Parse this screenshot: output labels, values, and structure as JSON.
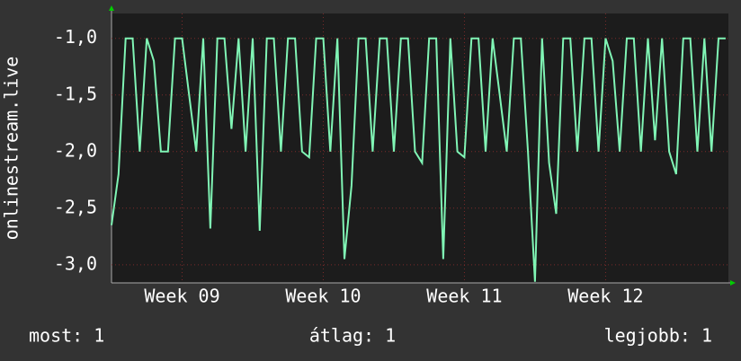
{
  "chart_data": {
    "type": "line",
    "y_label": "onlinestream.live",
    "x": [
      9,
      9.05,
      9.1,
      9.15,
      9.2,
      9.25,
      9.3,
      9.35,
      9.4,
      9.45,
      9.5,
      9.55,
      9.6,
      9.65,
      9.7,
      9.75,
      9.8,
      9.85,
      9.9,
      9.95,
      10,
      10.05,
      10.1,
      10.15,
      10.2,
      10.25,
      10.3,
      10.35,
      10.4,
      10.45,
      10.5,
      10.55,
      10.6,
      10.65,
      10.7,
      10.75,
      10.8,
      10.85,
      10.9,
      10.95,
      11,
      11.05,
      11.1,
      11.15,
      11.2,
      11.25,
      11.3,
      11.35,
      11.4,
      11.45,
      11.5,
      11.55,
      11.6,
      11.65,
      11.7,
      11.75,
      11.8,
      11.85,
      11.9,
      11.95,
      12,
      12.05,
      12.1,
      12.15,
      12.2,
      12.25,
      12.3,
      12.35,
      12.4,
      12.45,
      12.5,
      12.55,
      12.6,
      12.65,
      12.7,
      12.75,
      12.8,
      12.85,
      12.9,
      12.95,
      13,
      13.05,
      13.1,
      13.15,
      13.2,
      13.25,
      13.3,
      13.35
    ],
    "series": [
      {
        "color": "#80f5b5",
        "values": [
          -2.65,
          -2.2,
          -1,
          -1,
          -2,
          -1,
          -1.2,
          -2,
          -2,
          -1,
          -1,
          -1.5,
          -2,
          -1,
          -2.68,
          -1,
          -1,
          -1.8,
          -1,
          -2,
          -1,
          -2.7,
          -1,
          -1,
          -2,
          -1,
          -1,
          -2,
          -2.05,
          -1,
          -1,
          -2,
          -1,
          -2.95,
          -2.3,
          -1,
          -1,
          -2,
          -1,
          -1,
          -2,
          -1,
          -1,
          -2,
          -2.1,
          -1,
          -1,
          -2.95,
          -1,
          -2,
          -2.05,
          -1,
          -1,
          -2,
          -1,
          -1.5,
          -2,
          -1,
          -1,
          -2,
          -3.15,
          -1,
          -2.1,
          -2.55,
          -1,
          -1,
          -2,
          -1,
          -1,
          -2,
          -1,
          -1.2,
          -2,
          -1,
          -1,
          -2,
          -1,
          -1.9,
          -1,
          -2,
          -2.2,
          -1,
          -1,
          -2,
          -1,
          -2,
          -1,
          -1
        ]
      }
    ],
    "xlim": [
      9,
      13.37
    ],
    "xticks": [
      {
        "value": 9.5,
        "label": "Week 09"
      },
      {
        "value": 10.5,
        "label": "Week 10"
      },
      {
        "value": 11.5,
        "label": "Week 11"
      },
      {
        "value": 12.5,
        "label": "Week 12"
      }
    ],
    "ylim": [
      -3.16,
      -0.78
    ],
    "yticks": [
      {
        "value": -3,
        "label": "-3,0"
      },
      {
        "value": -2.5,
        "label": "-2,5"
      },
      {
        "value": -2,
        "label": "-2,0"
      },
      {
        "value": -1.5,
        "label": "-1,5"
      },
      {
        "value": -1,
        "label": "-1,0"
      }
    ],
    "grid": true,
    "legend": [
      "most: 1",
      "átlag: 1",
      "legjobb: 1"
    ]
  }
}
